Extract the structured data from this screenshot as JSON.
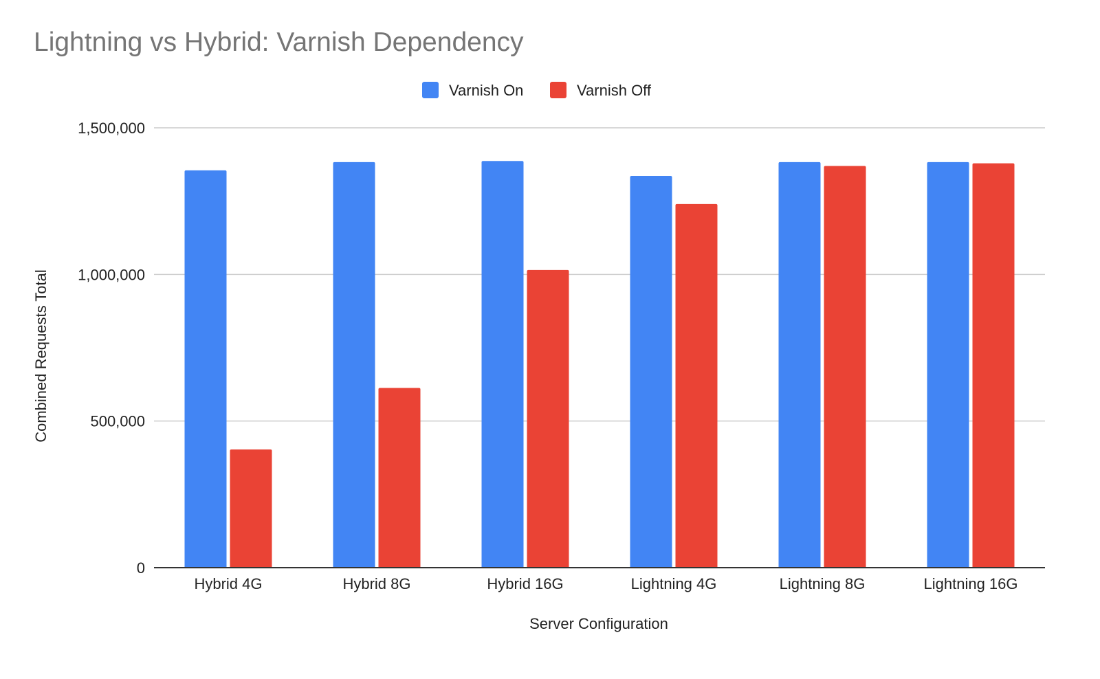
{
  "chart_data": {
    "type": "bar",
    "title": "Lightning vs Hybrid: Varnish Dependency",
    "xlabel": "Server Configuration",
    "ylabel": "Combined Requests Total",
    "categories": [
      "Hybrid 4G",
      "Hybrid 8G",
      "Hybrid 16G",
      "Lightning 4G",
      "Lightning 8G",
      "Lightning 16G"
    ],
    "series": [
      {
        "name": "Varnish On",
        "color": "#4285f4",
        "values": [
          1355000,
          1383000,
          1387000,
          1336000,
          1383000,
          1383000
        ]
      },
      {
        "name": "Varnish Off",
        "color": "#ea4335",
        "values": [
          403000,
          613000,
          1015000,
          1240000,
          1370000,
          1379000
        ]
      }
    ],
    "ylim": [
      0,
      1500000
    ],
    "yticks": [
      0,
      500000,
      1000000,
      1500000
    ],
    "ytick_labels": [
      "0",
      "500,000",
      "1,000,000",
      "1,500,000"
    ],
    "grid": true,
    "legend_position": "top-center"
  }
}
